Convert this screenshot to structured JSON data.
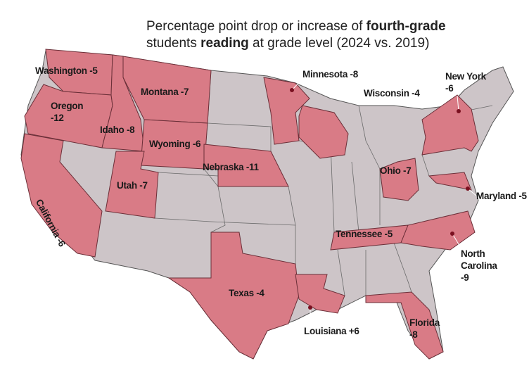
{
  "title": {
    "part1": "Percentage point drop or increase of",
    "bold1": "fourth-grade",
    "part2": "students",
    "bold2": "reading",
    "part3": "at grade level (2024 vs. 2019)"
  },
  "states": [
    {
      "name": "Washington",
      "change": -5
    },
    {
      "name": "Montana",
      "change": -7
    },
    {
      "name": "Oregon",
      "change": -12
    },
    {
      "name": "Idaho",
      "change": -8
    },
    {
      "name": "Wyoming",
      "change": -6
    },
    {
      "name": "California",
      "change": -6
    },
    {
      "name": "Utah",
      "change": -7
    },
    {
      "name": "Nebraska",
      "change": -11
    },
    {
      "name": "Minnesota",
      "change": -8
    },
    {
      "name": "Wisconsin",
      "change": -4
    },
    {
      "name": "New York",
      "change": -6
    },
    {
      "name": "Ohio",
      "change": -7
    },
    {
      "name": "Maryland",
      "change": -5
    },
    {
      "name": "Tennessee",
      "change": -5
    },
    {
      "name": "North Carolina",
      "change": -9
    },
    {
      "name": "Texas",
      "change": -4
    },
    {
      "name": "Louisiana",
      "change": 6,
      "change_label": "+6"
    },
    {
      "name": "Florida",
      "change": -8
    }
  ]
}
